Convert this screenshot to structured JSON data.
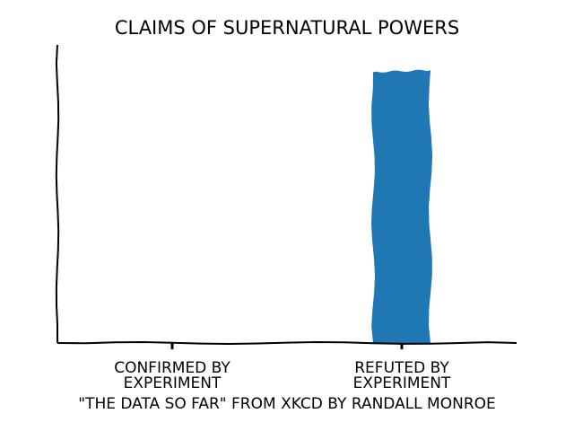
{
  "chart_data": {
    "type": "bar",
    "title": "CLAIMS OF SUPERNATURAL POWERS",
    "categories": [
      [
        "CONFIRMED BY",
        "EXPERIMENT"
      ],
      [
        "REFUTED BY",
        "EXPERIMENT"
      ]
    ],
    "values": [
      0,
      100
    ],
    "ylim": [
      0,
      110
    ],
    "xlabel": "\"THE DATA SO FAR\" FROM XKCD BY RANDALL MONROE",
    "ylabel": "",
    "grid": false,
    "bar_color": "#1f77b4",
    "axis_color": "#000000"
  }
}
